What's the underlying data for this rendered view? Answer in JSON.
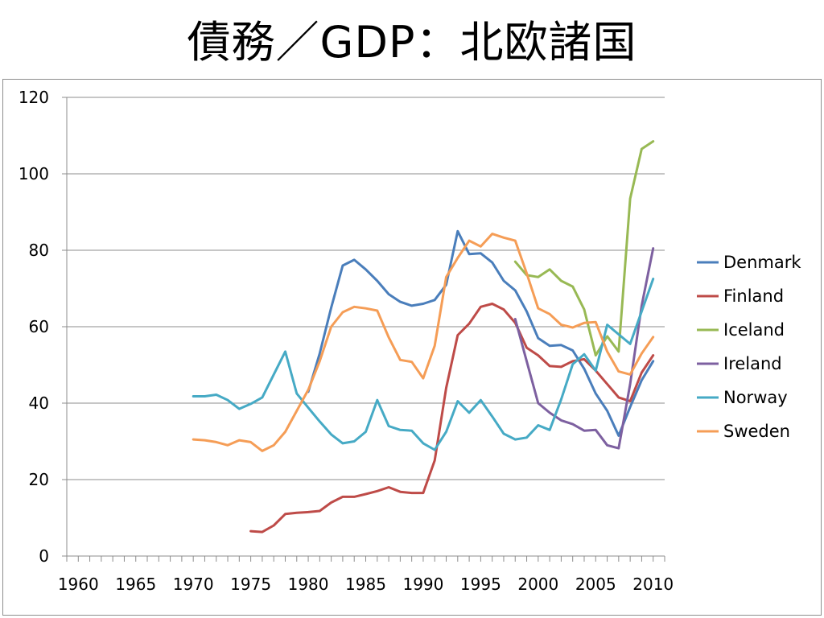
{
  "slide_title": "債務／GDP：北欧諸国",
  "chart_data": {
    "type": "line",
    "title": "",
    "xlabel": "",
    "ylabel": "",
    "xlim": [
      1959,
      2011
    ],
    "ylim": [
      0,
      120
    ],
    "yticks": [
      0,
      20,
      40,
      60,
      80,
      100,
      120
    ],
    "xticks": [
      1960,
      1965,
      1970,
      1975,
      1980,
      1985,
      1990,
      1995,
      2000,
      2005,
      2010
    ],
    "grid": "horizontal",
    "legend": "right",
    "series": [
      {
        "name": "Denmark",
        "color": "#4a7ebb",
        "x": [
          1980,
          1981,
          1982,
          1983,
          1984,
          1985,
          1986,
          1987,
          1988,
          1989,
          1990,
          1991,
          1992,
          1993,
          1994,
          1995,
          1996,
          1997,
          1998,
          1999,
          2000,
          2001,
          2002,
          2003,
          2004,
          2005,
          2006,
          2007,
          2008,
          2009,
          2010
        ],
        "y": [
          43,
          53,
          65,
          76,
          77.5,
          75,
          72,
          68.5,
          66.5,
          65.5,
          66,
          67,
          71,
          85,
          79,
          79.2,
          76.8,
          72,
          69.5,
          64,
          57,
          55,
          55.2,
          53.8,
          49,
          42.5,
          38,
          31.5,
          39,
          46,
          51
        ]
      },
      {
        "name": "Finland",
        "color": "#be4b48",
        "x": [
          1975,
          1976,
          1977,
          1978,
          1979,
          1980,
          1981,
          1982,
          1983,
          1984,
          1985,
          1986,
          1987,
          1988,
          1989,
          1990,
          1991,
          1992,
          1993,
          1994,
          1995,
          1996,
          1997,
          1998,
          1999,
          2000,
          2001,
          2002,
          2003,
          2004,
          2005,
          2006,
          2007,
          2008,
          2009,
          2010
        ],
        "y": [
          6.5,
          6.3,
          8,
          11,
          11.3,
          11.5,
          11.8,
          14,
          15.5,
          15.5,
          16.2,
          17,
          18,
          16.8,
          16.5,
          16.5,
          25,
          44,
          57.8,
          60.8,
          65.2,
          66,
          64.5,
          61,
          54.5,
          52.5,
          49.7,
          49.5,
          51,
          51.5,
          48.5,
          45,
          41.5,
          40.5,
          48,
          52.5
        ]
      },
      {
        "name": "Iceland",
        "color": "#98b954",
        "x": [
          1998,
          1999,
          2000,
          2001,
          2002,
          2003,
          2004,
          2005,
          2006,
          2007,
          2008,
          2009,
          2010
        ],
        "y": [
          77,
          73.5,
          73,
          75,
          72,
          70.5,
          64.5,
          52.5,
          57.5,
          53.5,
          93.5,
          106.5,
          108.5
        ]
      },
      {
        "name": "Ireland",
        "color": "#7d60a0",
        "x": [
          1998,
          1999,
          2000,
          2001,
          2002,
          2003,
          2004,
          2005,
          2006,
          2007,
          2008,
          2009,
          2010
        ],
        "y": [
          62,
          51,
          40,
          37.5,
          35.5,
          34.5,
          32.8,
          33,
          29,
          28.2,
          45,
          65.5,
          80.5
        ]
      },
      {
        "name": "Norway",
        "color": "#46aac5",
        "x": [
          1970,
          1971,
          1972,
          1973,
          1974,
          1975,
          1976,
          1977,
          1978,
          1979,
          1980,
          1981,
          1982,
          1983,
          1984,
          1985,
          1986,
          1987,
          1988,
          1989,
          1990,
          1991,
          1992,
          1993,
          1994,
          1995,
          1996,
          1997,
          1998,
          1999,
          2000,
          2001,
          2002,
          2003,
          2004,
          2005,
          2006,
          2007,
          2008,
          2009,
          2010
        ],
        "y": [
          41.8,
          41.8,
          42.2,
          40.8,
          38.5,
          39.8,
          41.5,
          47.5,
          53.5,
          42.5,
          38.8,
          35.2,
          31.8,
          29.5,
          30,
          32.5,
          40.8,
          34,
          33,
          32.8,
          29.5,
          27.8,
          32.5,
          40.5,
          37.5,
          40.8,
          36.5,
          32,
          30.5,
          31,
          34.2,
          33,
          41,
          50.2,
          52.8,
          48.5,
          60.5,
          58,
          55.5,
          64,
          72.5
        ]
      },
      {
        "name": "Sweden",
        "color": "#f59d56",
        "x": [
          1970,
          1971,
          1972,
          1973,
          1974,
          1975,
          1976,
          1977,
          1978,
          1979,
          1980,
          1981,
          1982,
          1983,
          1984,
          1985,
          1986,
          1987,
          1988,
          1989,
          1990,
          1991,
          1992,
          1993,
          1994,
          1995,
          1996,
          1997,
          1998,
          1999,
          2000,
          2001,
          2002,
          2003,
          2004,
          2005,
          2006,
          2007,
          2008,
          2009,
          2010
        ],
        "y": [
          30.5,
          30.3,
          29.8,
          29,
          30.3,
          29.8,
          27.5,
          29,
          32.5,
          38,
          43.5,
          51,
          60,
          63.8,
          65.2,
          64.8,
          64.2,
          57.2,
          51.3,
          50.8,
          46.5,
          55,
          73,
          78,
          82.5,
          81,
          84.3,
          83.3,
          82.5,
          74,
          64.8,
          63.3,
          60.5,
          59.8,
          61,
          61.2,
          53.5,
          48.3,
          47.5,
          53,
          57.3
        ]
      }
    ]
  }
}
